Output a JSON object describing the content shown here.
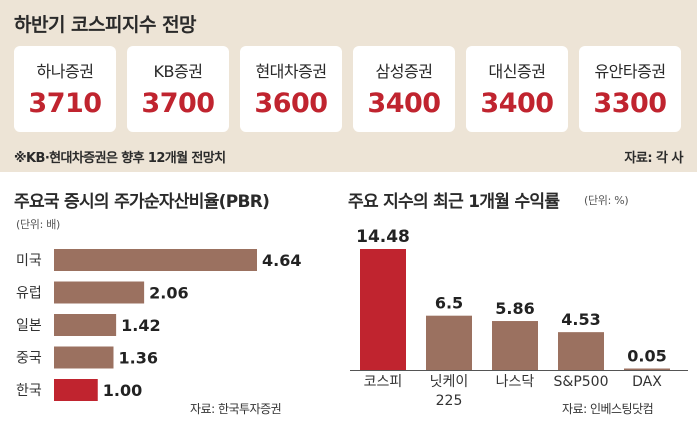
{
  "header": {
    "title": "하반기 코스피지수 전망",
    "footnote": "※KB·현대차증권은 향후 12개월 전망치",
    "source": "자료: 각 사"
  },
  "brokers": [
    {
      "name": "하나증권",
      "value": "3710"
    },
    {
      "name": "KB증권",
      "value": "3700"
    },
    {
      "name": "현대차증권",
      "value": "3600"
    },
    {
      "name": "삼성증권",
      "value": "3400"
    },
    {
      "name": "대신증권",
      "value": "3400"
    },
    {
      "name": "유안타증권",
      "value": "3300"
    }
  ],
  "colors": {
    "accent": "#c0242f",
    "bar": "#9b7160",
    "panel": "#ede4d6"
  },
  "chart_data": [
    {
      "type": "bar",
      "orientation": "horizontal",
      "title": "주요국 증시의 주가순자산비율(PBR)",
      "unit": "(단위: 배)",
      "source": "자료: 한국투자증권",
      "categories": [
        "미국",
        "유럽",
        "일본",
        "중국",
        "한국"
      ],
      "values": [
        4.64,
        2.06,
        1.42,
        1.36,
        1.0
      ],
      "labels": [
        "4.64",
        "2.06",
        "1.42",
        "1.36",
        "1.00"
      ],
      "highlight": "한국",
      "xlim": [
        0,
        4.64
      ]
    },
    {
      "type": "bar",
      "orientation": "vertical",
      "title": "주요 지수의 최근 1개월 수익률",
      "unit": "(단위: %)",
      "source": "자료: 인베스팅닷컴",
      "categories": [
        "코스피",
        "닛케이 225",
        "나스닥",
        "S&P500",
        "DAX"
      ],
      "values": [
        14.48,
        6.5,
        5.86,
        4.53,
        0.05
      ],
      "labels": [
        "14.48",
        "6.5",
        "5.86",
        "4.53",
        "0.05"
      ],
      "highlight": "코스피",
      "ylim": [
        0,
        14.48
      ]
    }
  ]
}
